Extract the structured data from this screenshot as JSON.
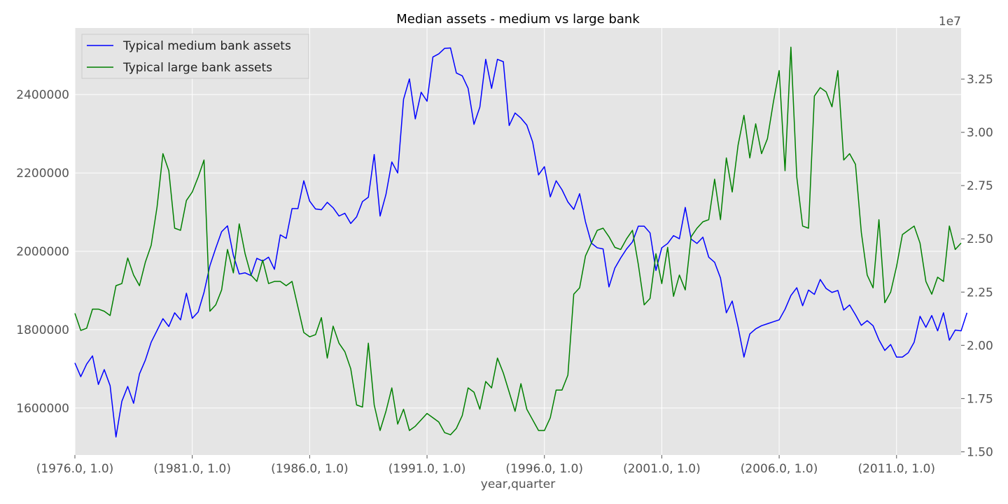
{
  "chart_data": {
    "type": "line",
    "title": "Median assets - medium vs large bank",
    "xlabel": "year,quarter",
    "x_tick_labels": [
      "(1976.0, 1.0)",
      "(1981.0, 1.0)",
      "(1986.0, 1.0)",
      "(1991.0, 1.0)",
      "(1996.0, 1.0)",
      "(2001.0, 1.0)",
      "(2006.0, 1.0)",
      "(2011.0, 1.0)"
    ],
    "x_start": "1976Q1",
    "x_end": "2013Q4",
    "left_axis": {
      "ylim": [
        1480000,
        2570000
      ],
      "ticks": [
        1600000,
        1800000,
        2000000,
        2200000,
        2400000
      ]
    },
    "right_axis": {
      "ylim": [
        14.85,
        34.9
      ],
      "ticks": [
        15.0,
        17.5,
        20.0,
        22.5,
        25.0,
        27.5,
        30.0,
        32.5
      ],
      "tick_labels": [
        "1.50",
        "1.75",
        "2.00",
        "2.25",
        "2.50",
        "2.75",
        "3.00",
        "3.25"
      ],
      "offset_label": "1e7"
    },
    "legend_position": "upper-left",
    "grid": true,
    "series": [
      {
        "name": "Typical medium bank assets",
        "axis": "left",
        "color": "#0000ff",
        "values": [
          1715000,
          1680000,
          1712000,
          1733000,
          1660000,
          1698000,
          1657000,
          1526000,
          1617000,
          1655000,
          1612000,
          1687000,
          1722000,
          1768000,
          1798000,
          1828000,
          1808000,
          1843000,
          1825000,
          1893000,
          1829000,
          1845000,
          1895000,
          1963000,
          2008000,
          2050000,
          2065000,
          1990000,
          1942000,
          1945000,
          1938000,
          1982000,
          1975000,
          1985000,
          1954000,
          2042000,
          2033000,
          2109000,
          2109000,
          2180000,
          2128000,
          2108000,
          2106000,
          2125000,
          2111000,
          2090000,
          2097000,
          2071000,
          2088000,
          2127000,
          2138000,
          2247000,
          2090000,
          2145000,
          2228000,
          2200000,
          2388000,
          2440000,
          2338000,
          2406000,
          2383000,
          2496000,
          2504000,
          2518000,
          2519000,
          2455000,
          2448000,
          2416000,
          2324000,
          2368000,
          2490000,
          2416000,
          2490000,
          2484000,
          2321000,
          2353000,
          2340000,
          2322000,
          2279000,
          2195000,
          2216000,
          2139000,
          2180000,
          2157000,
          2126000,
          2107000,
          2147000,
          2075000,
          2021000,
          2009000,
          2006000,
          1909000,
          1957000,
          1983000,
          2006000,
          2024000,
          2064000,
          2064000,
          2047000,
          1951000,
          2009000,
          2020000,
          2040000,
          2032000,
          2112000,
          2031000,
          2020000,
          2036000,
          1985000,
          1972000,
          1932000,
          1843000,
          1873000,
          1807000,
          1730000,
          1789000,
          1802000,
          1810000,
          1815000,
          1820000,
          1825000,
          1852000,
          1887000,
          1907000,
          1861000,
          1901000,
          1890000,
          1928000,
          1905000,
          1895000,
          1900000,
          1850000,
          1863000,
          1838000,
          1811000,
          1823000,
          1810000,
          1774000,
          1747000,
          1762000,
          1730000,
          1730000,
          1741000,
          1768000,
          1834000,
          1806000,
          1836000,
          1797000,
          1843000,
          1773000,
          1799000,
          1797000,
          1843000
        ]
      },
      {
        "name": "Typical large bank assets",
        "axis": "right",
        "color": "#008000",
        "values": [
          21.5,
          20.7,
          20.8,
          21.7,
          21.7,
          21.6,
          21.4,
          22.8,
          22.9,
          24.1,
          23.3,
          22.8,
          23.9,
          24.7,
          26.5,
          29.0,
          28.2,
          25.5,
          25.4,
          26.8,
          27.2,
          27.9,
          28.7,
          21.6,
          21.9,
          22.6,
          24.5,
          23.4,
          25.7,
          24.3,
          23.3,
          23.0,
          24.0,
          22.9,
          23.0,
          23.0,
          22.8,
          23.0,
          21.8,
          20.6,
          20.4,
          20.5,
          21.3,
          19.4,
          20.9,
          20.1,
          19.7,
          18.9,
          17.2,
          17.1,
          20.1,
          17.2,
          16.0,
          16.9,
          18.0,
          16.3,
          17.0,
          16.0,
          16.2,
          16.5,
          16.8,
          16.6,
          16.4,
          15.9,
          15.8,
          16.1,
          16.7,
          18.0,
          17.8,
          17.0,
          18.3,
          18.0,
          19.4,
          18.7,
          17.8,
          16.9,
          18.2,
          17.0,
          16.5,
          16.0,
          16.0,
          16.6,
          17.9,
          17.9,
          18.6,
          22.4,
          22.7,
          24.2,
          24.8,
          25.4,
          25.5,
          25.1,
          24.6,
          24.5,
          25.0,
          25.4,
          23.8,
          21.9,
          22.2,
          24.3,
          22.9,
          24.6,
          22.3,
          23.3,
          22.6,
          25.1,
          25.5,
          25.8,
          25.9,
          27.8,
          25.9,
          28.8,
          27.2,
          29.4,
          30.8,
          28.8,
          30.4,
          29.0,
          29.7,
          31.4,
          32.9,
          28.2,
          34.0,
          27.9,
          25.6,
          25.5,
          31.7,
          32.1,
          31.9,
          31.2,
          32.9,
          28.7,
          29.0,
          28.5,
          25.3,
          23.3,
          22.7,
          25.9,
          22.0,
          22.5,
          23.7,
          25.2,
          25.4,
          25.6,
          24.8,
          23.0,
          22.4,
          23.2,
          23.0,
          25.6,
          24.5,
          24.8
        ]
      }
    ]
  }
}
